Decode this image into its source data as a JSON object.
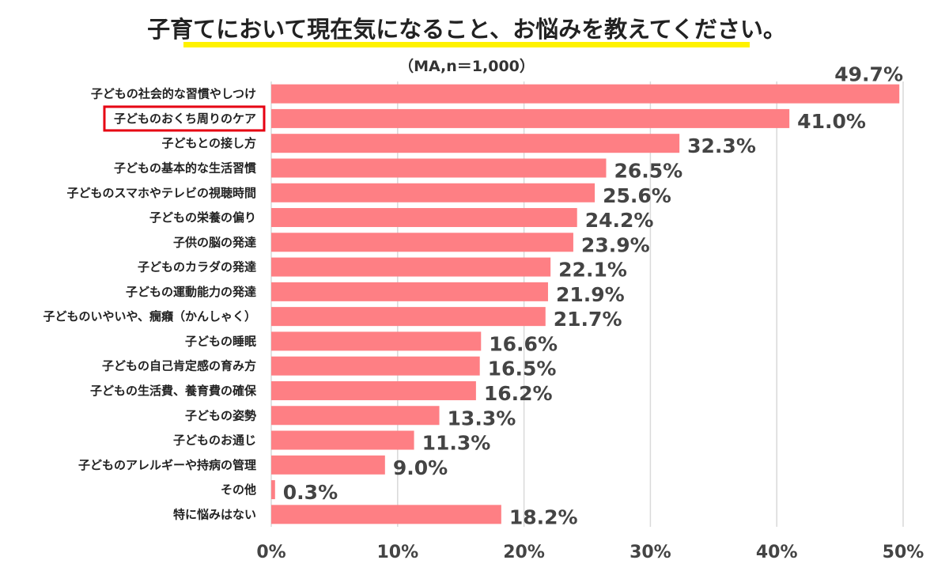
{
  "chart_data": {
    "type": "bar",
    "orientation": "horizontal",
    "title": "子育てにおいて現在気になること、お悩みを教えてください。",
    "subtitle": "（MA,n＝1,000）",
    "categories": [
      "子どもの社会的な習慣やしつけ",
      "子どものおくち周りのケア",
      "子どもとの接し方",
      "子どもの基本的な生活習慣",
      "子どものスマホやテレビの視聴時間",
      "子どもの栄養の偏り",
      "子供の脳の発達",
      "子どものカラダの発達",
      "子どもの運動能力の発達",
      "子どものいやいや、癇癪（かんしゃく）",
      "子どもの睡眠",
      "子どもの自己肯定感の育み方",
      "子どもの生活費、養育費の確保",
      "子どもの姿勢",
      "子どものお通じ",
      "子どものアレルギーや持病の管理",
      "その他",
      "特に悩みはない"
    ],
    "values": [
      49.7,
      41.0,
      32.3,
      26.5,
      25.6,
      24.2,
      23.9,
      22.1,
      21.9,
      21.7,
      16.6,
      16.5,
      16.2,
      13.3,
      11.3,
      9.0,
      0.3,
      18.2
    ],
    "value_labels": [
      "49.7%",
      "41.0%",
      "32.3%",
      "26.5%",
      "25.6%",
      "24.2%",
      "23.9%",
      "22.1%",
      "21.9%",
      "21.7%",
      "16.6%",
      "16.5%",
      "16.2%",
      "13.3%",
      "11.3%",
      "9.0%",
      "0.3%",
      "18.2%"
    ],
    "highlight_index": 1,
    "xlim": [
      0,
      50
    ],
    "xticks": [
      0,
      10,
      20,
      30,
      40,
      50
    ],
    "xtick_labels": [
      "0%",
      "10%",
      "20%",
      "30%",
      "40%",
      "50%"
    ],
    "grid": "vertical",
    "legend": "none",
    "colors": {
      "bar": "#fe7f84",
      "highlight_text": "#e60012",
      "highlight_box": "#e60012",
      "title_underline": "#fff200",
      "grid": "#d9d9d9",
      "value_text": "#444444"
    }
  }
}
